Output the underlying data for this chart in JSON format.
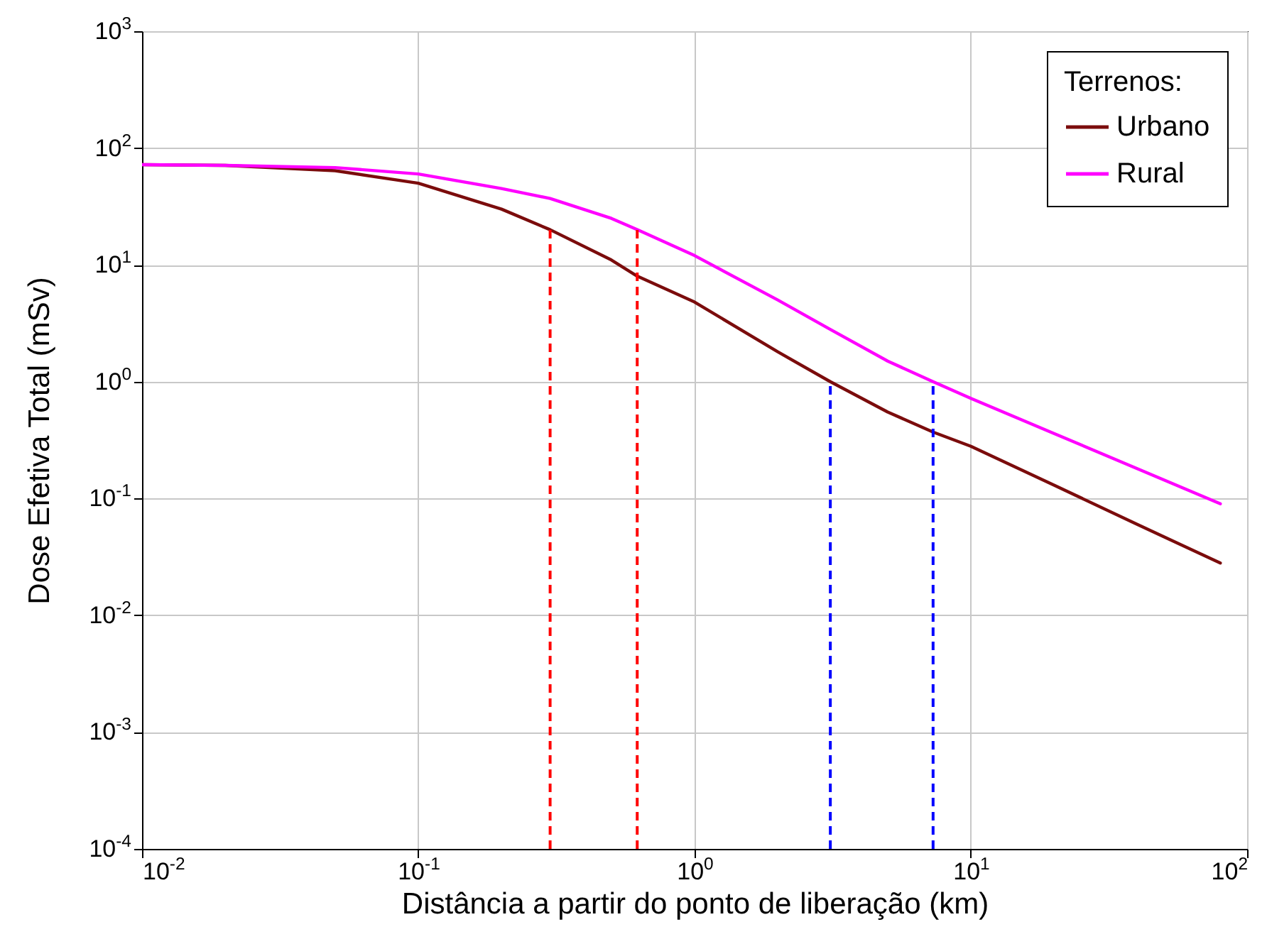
{
  "chart_data": {
    "type": "line",
    "xlabel": "Distância a partir do ponto de liberação (km)",
    "ylabel": "Dose Efetiva Total (mSv)",
    "legend_title": "Terrenos:",
    "log": "xy",
    "grid": true,
    "legend": "top right",
    "line_style": "solid",
    "x": [
      0.01,
      0.02,
      0.05,
      0.1,
      0.2,
      0.3,
      0.5,
      0.62,
      1,
      2,
      3.1,
      5,
      7.3,
      10,
      20,
      40,
      80
    ],
    "xlim": [
      0.01,
      100
    ],
    "ylim": [
      0.0001,
      1000
    ],
    "xticks": [
      {
        "value": 0.01,
        "label": "10$^{-2}$"
      },
      {
        "value": 0.1,
        "label": "10$^{-1}$"
      },
      {
        "value": 1,
        "label": "10$^{0}$"
      },
      {
        "value": 10,
        "label": "10$^{1}$"
      },
      {
        "value": 100,
        "label": "10$^{2}$"
      }
    ],
    "yticks": [
      {
        "value": 0.0001,
        "label": "10$^{-4}$"
      },
      {
        "value": 0.001,
        "label": "10$^{-3}$"
      },
      {
        "value": 0.01,
        "label": "10$^{-2}$"
      },
      {
        "value": 0.1,
        "label": "10$^{-1}$"
      },
      {
        "value": 1,
        "label": "10$^{0}$"
      },
      {
        "value": 10,
        "label": "10$^{1}$"
      },
      {
        "value": 100,
        "label": "10$^{2}$"
      },
      {
        "value": 1000,
        "label": "10$^{3}$"
      }
    ],
    "series": [
      {
        "name": "Urbano",
        "color": "#7b0c0c",
        "values": [
          72,
          71,
          64,
          50,
          30,
          20,
          11,
          8,
          4.8,
          1.8,
          1,
          0.55,
          0.37,
          0.28,
          0.13,
          0.06,
          0.028
        ]
      },
      {
        "name": "Rural",
        "color": "#ff00ff",
        "values": [
          72,
          71,
          68,
          60,
          45,
          37,
          25,
          20,
          12,
          5,
          2.8,
          1.5,
          1,
          0.72,
          0.36,
          0.18,
          0.09
        ]
      },
      {
        "color": "#ff0000",
        "line_style": "dashed",
        "x": [
          0.3,
          0.3
        ],
        "values": [
          0.0001,
          20
        ]
      },
      {
        "color": "#ff0000",
        "line_style": "dashed",
        "x": [
          0.62,
          0.62
        ],
        "values": [
          0.0001,
          20
        ]
      },
      {
        "color": "#0000ff",
        "line_style": "dashed",
        "x": [
          3.1,
          3.1
        ],
        "values": [
          0.0001,
          1
        ]
      },
      {
        "color": "#0000ff",
        "line_style": "dashed",
        "x": [
          7.3,
          7.3
        ],
        "values": [
          0.0001,
          1
        ]
      }
    ]
  }
}
